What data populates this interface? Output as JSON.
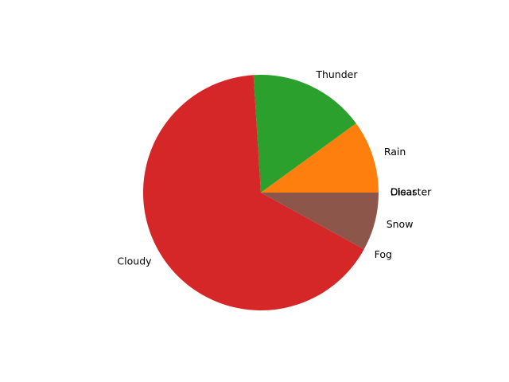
{
  "chart_data": {
    "type": "pie",
    "title": "",
    "start_angle_deg": 0,
    "direction": "counterclockwise",
    "slices": [
      {
        "label": "Clear",
        "value": 0.0,
        "color": "#1f77b4"
      },
      {
        "label": "Rain",
        "value": 10.0,
        "color": "#ff7f0e"
      },
      {
        "label": "Thunder",
        "value": 16.0,
        "color": "#2ca02c"
      },
      {
        "label": "Cloudy",
        "value": 66.0,
        "color": "#d62728"
      },
      {
        "label": "Fog",
        "value": 0.0,
        "color": "#9467bd"
      },
      {
        "label": "Snow",
        "value": 8.0,
        "color": "#8c564b"
      },
      {
        "label": "Disaster",
        "value": 0.0,
        "color": "#e377c2"
      }
    ]
  }
}
